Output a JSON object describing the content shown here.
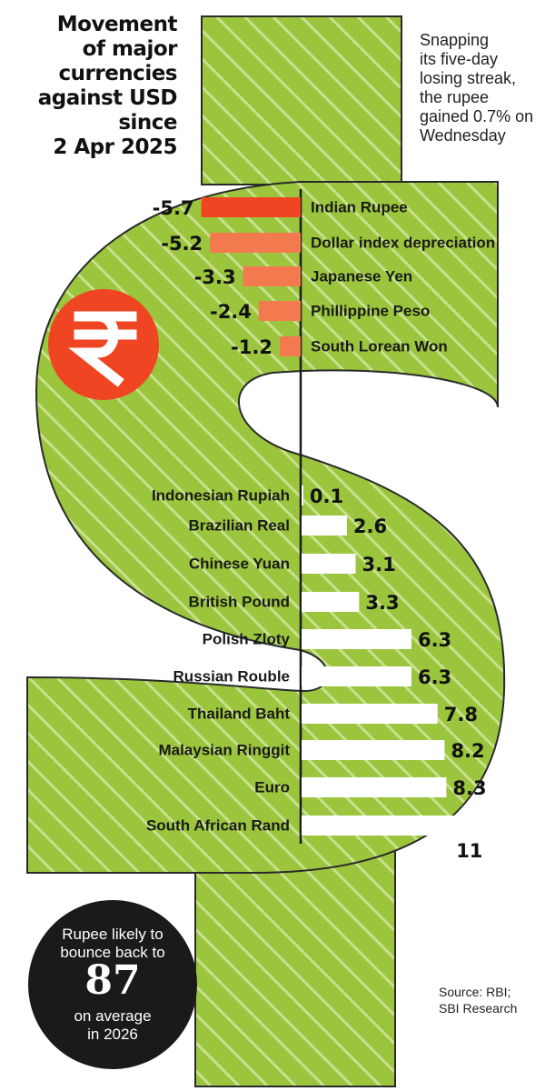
{
  "header": {
    "title_lines": [
      "Movement",
      "of major",
      "currencies",
      "against USD",
      "since",
      "2 Apr 2025"
    ]
  },
  "note": {
    "lines": [
      "Snapping",
      "its five-day",
      "losing streak,",
      "the rupee",
      "gained 0.7% on",
      "Wednesday"
    ]
  },
  "callout": {
    "line1": [
      "Rupee likely to",
      "bounce back to"
    ],
    "value": "87",
    "line2": [
      "on average",
      "in 2026"
    ]
  },
  "source": {
    "lines": [
      "Source: RBI;",
      "SBI Research"
    ]
  },
  "icons": {
    "rupee": "rupee-symbol-icon",
    "background": "dollar-sign-icon"
  },
  "colors": {
    "dollar_green": "#9bc53d",
    "negative_strong": "#ef4523",
    "negative_light": "#f37a4f",
    "positive": "#ffffff",
    "axis": "#1a1a1a",
    "rupee_badge": "#ef4523",
    "callout_bg": "#1a1a1a"
  },
  "chart_data": {
    "type": "bar",
    "orientation": "horizontal",
    "title": "Movement of major currencies against USD since 2 Apr 2025",
    "categories": [
      "Indian Rupee",
      "Dollar index depreciation",
      "Japanese Yen",
      "Phillippine Peso",
      "South Lorean Won",
      "Indonesian Rupiah",
      "Brazilian Real",
      "Chinese Yuan",
      "British Pound",
      "Polish Zloty",
      "Russian Rouble",
      "Thailand Baht",
      "Malaysian Ringgit",
      "Euro",
      "South African Rand"
    ],
    "values": [
      -5.7,
      -5.2,
      -3.3,
      -2.4,
      -1.2,
      0.1,
      2.6,
      3.1,
      3.3,
      6.3,
      6.3,
      7.8,
      8.2,
      8.3,
      11
    ],
    "value_labels": [
      "-5.7",
      "-5.2",
      "-3.3",
      "-2.4",
      "-1.2",
      "0.1",
      "2.6",
      "3.1",
      "3.3",
      "6.3",
      "6.3",
      "7.8",
      "8.2",
      "8.3",
      "11"
    ],
    "unit": "%"
  }
}
